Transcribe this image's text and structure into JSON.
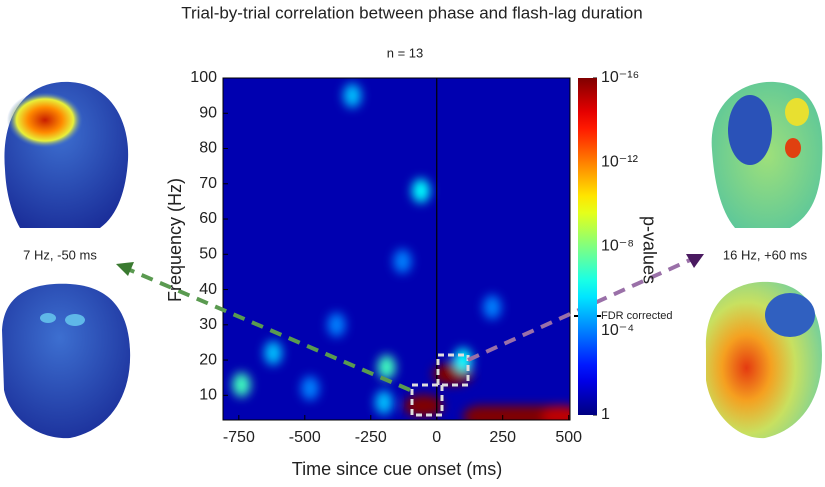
{
  "chart_data": {
    "type": "heatmap",
    "title": "Trial-by-trial correlation between phase and flash-lag duration",
    "subtitle": "n = 13",
    "x_label": "Time since cue onset (ms)",
    "y_label": "Frequency (Hz)",
    "colorbar_label": "p-values",
    "xlim": [
      -810,
      505
    ],
    "ylim": [
      3,
      100
    ],
    "xticks": [
      -750,
      -500,
      -250,
      0,
      250,
      500
    ],
    "yticks": [
      10,
      20,
      30,
      40,
      50,
      60,
      70,
      80,
      90,
      100
    ],
    "clim": [
      1,
      1e-16
    ],
    "color_scale": "log",
    "colormap": "jet",
    "cticks": [
      {
        "value": 1e-16,
        "label": "10⁻¹⁶"
      },
      {
        "value": 1e-12,
        "label": "10⁻¹²"
      },
      {
        "value": 1e-08,
        "label": "10⁻⁸"
      },
      {
        "value": 0.0001,
        "label": "10⁻⁴"
      },
      1
    ],
    "fdr_threshold": 2e-05,
    "fdr_label": "FDR corrected",
    "x": [
      -50,
      60,
      175,
      225,
      275,
      325,
      375,
      425,
      475,
      -190,
      -740,
      -620,
      -320,
      -60,
      100,
      -200,
      -380,
      -480,
      210,
      -130
    ],
    "y": [
      7,
      16,
      4,
      4,
      4,
      4,
      4,
      4,
      4,
      18,
      13,
      22,
      95,
      68,
      20,
      8,
      30,
      12,
      35,
      48
    ],
    "values": [
      1e-16,
      1e-16,
      1e-16,
      1e-16,
      1e-16,
      1e-16,
      1e-16,
      1e-16,
      1e-15,
      1e-07,
      1e-07,
      1e-05,
      1e-05,
      1e-06,
      1e-06,
      1e-05,
      0.0001,
      0.0001,
      0.0001,
      0.0001
    ],
    "annotations": [
      "7 Hz, -50 ms",
      "16 Hz, +60 ms"
    ]
  }
}
